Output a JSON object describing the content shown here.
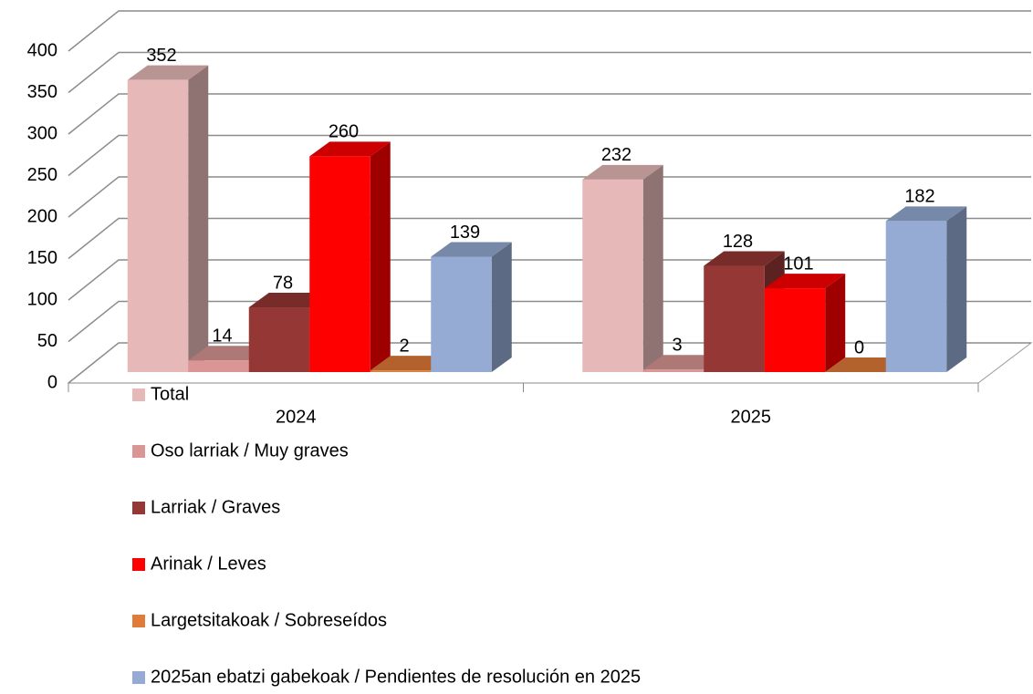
{
  "chart_data": {
    "type": "bar3d",
    "categories": [
      "2024",
      "2025"
    ],
    "series": [
      {
        "name": "Total",
        "color": "#e6b9b8",
        "values": [
          352,
          232
        ]
      },
      {
        "name": "Oso larriak  / Muy graves",
        "color": "#d99694",
        "values": [
          14,
          3
        ]
      },
      {
        "name": "Larriak / Graves",
        "color": "#953735",
        "values": [
          78,
          128
        ]
      },
      {
        "name": "Arinak / Leves",
        "color": "#ff0000",
        "values": [
          260,
          101
        ]
      },
      {
        "name": "Largetsitakoak / Sobreseídos",
        "color": "#e07b39",
        "values": [
          2,
          0
        ]
      },
      {
        "name": "2025an ebatzi gabekoak / Pendientes de resolución en 2025",
        "color": "#95abd3",
        "values": [
          139,
          182
        ]
      }
    ],
    "ylim": [
      0,
      400
    ],
    "yticks": [
      0,
      50,
      100,
      150,
      200,
      250,
      300,
      350,
      400
    ],
    "grid": true,
    "legend": "bottom"
  }
}
